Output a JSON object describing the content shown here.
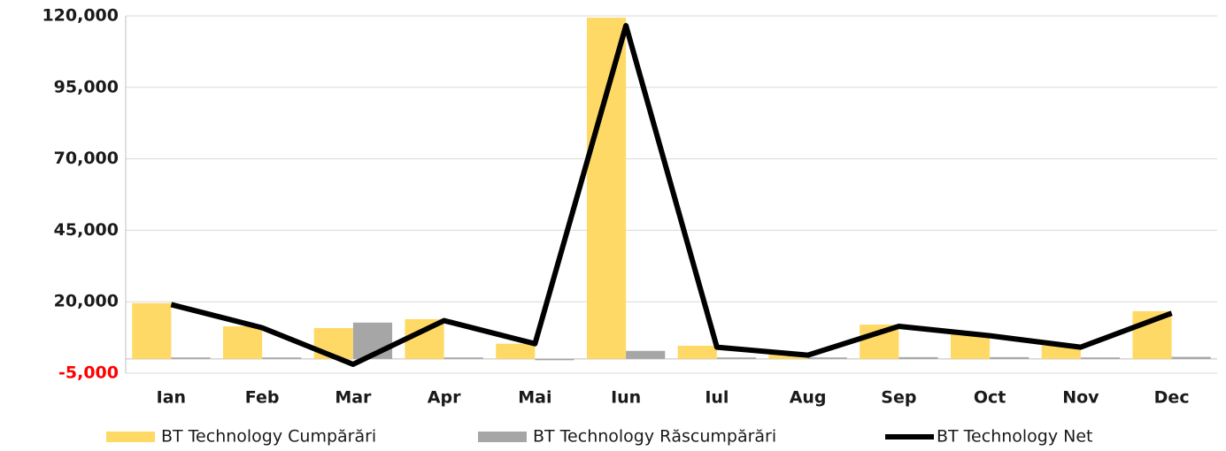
{
  "chart_data": {
    "type": "bar",
    "categories": [
      "Ian",
      "Feb",
      "Mar",
      "Apr",
      "Mai",
      "Iun",
      "Iul",
      "Aug",
      "Sep",
      "Oct",
      "Nov",
      "Dec"
    ],
    "series": [
      {
        "name": "BT Technology Cumpărări",
        "color": "#ffd966",
        "type": "bar",
        "values": [
          19500,
          11400,
          10800,
          13900,
          5300,
          119400,
          4600,
          1800,
          12000,
          8700,
          4600,
          16700
        ]
      },
      {
        "name": "BT Technology Răscumpărări",
        "color": "#a6a6a6",
        "type": "bar",
        "values": [
          500,
          500,
          12700,
          500,
          0,
          2800,
          500,
          500,
          600,
          600,
          500,
          700
        ]
      },
      {
        "name": "BT Technology Net",
        "color": "#000000",
        "type": "line",
        "values": [
          19000,
          10900,
          -1900,
          13400,
          5300,
          116600,
          4100,
          1300,
          11400,
          8100,
          4100,
          16000
        ]
      }
    ],
    "ylim": [
      -5000,
      120000
    ],
    "yticks": [
      {
        "value": -5000,
        "label": "-5,000"
      },
      {
        "value": 20000,
        "label": "20,000"
      },
      {
        "value": 45000,
        "label": "45,000"
      },
      {
        "value": 70000,
        "label": "70,000"
      },
      {
        "value": 95000,
        "label": "95,000"
      },
      {
        "value": 120000,
        "label": "120,000"
      }
    ],
    "negative_tick_color": "#ff0000",
    "grid": true,
    "legend": "bottom"
  }
}
